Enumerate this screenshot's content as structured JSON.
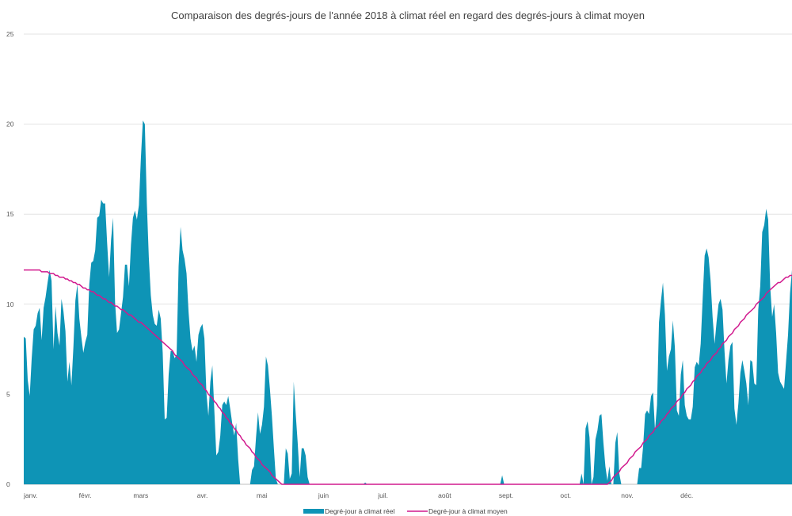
{
  "chart_data": {
    "type": "area",
    "title": "Comparaison des degrés-jours de l'année 2018 à climat réel en regard des degrés-jours à climat moyen",
    "xlabel": "",
    "ylabel": "",
    "ylim": [
      0,
      25
    ],
    "yticks": [
      0,
      5,
      10,
      15,
      20,
      25
    ],
    "grid": true,
    "legend_position": "bottom",
    "x_tick_labels": [
      "janv.",
      "févr.",
      "mars",
      "avr.",
      "mai",
      "juin",
      "juil.",
      "août",
      "sept.",
      "oct.",
      "nov.",
      "déc."
    ],
    "x": {
      "start": "2018-01-01",
      "end": "2018-12-31",
      "step": "1 day"
    },
    "series": [
      {
        "name": "Degré-jour à climat réel",
        "style": "area",
        "color": "#0E94B6",
        "values": [
          8.2,
          8.1,
          5.8,
          4.9,
          7.0,
          8.6,
          8.8,
          9.5,
          9.8,
          8.0,
          9.8,
          10.4,
          11.2,
          11.9,
          11.3,
          7.5,
          9.9,
          8.4,
          7.7,
          10.3,
          9.6,
          8.5,
          5.7,
          6.8,
          5.5,
          7.6,
          10.2,
          11.1,
          9.2,
          8.2,
          7.3,
          7.9,
          8.3,
          11.1,
          12.3,
          12.4,
          13.0,
          14.8,
          14.9,
          15.8,
          15.6,
          15.6,
          13.4,
          11.5,
          13.6,
          14.8,
          10.1,
          8.4,
          8.6,
          9.5,
          10.4,
          12.2,
          12.2,
          11.0,
          13.3,
          14.8,
          15.2,
          14.7,
          15.5,
          18.1,
          20.2,
          20.0,
          15.6,
          12.6,
          10.5,
          9.4,
          8.9,
          8.8,
          9.7,
          9.2,
          7.3,
          3.6,
          3.7,
          6.1,
          7.4,
          7.4,
          7.0,
          7.2,
          12.1,
          14.3,
          13.0,
          12.5,
          11.7,
          9.6,
          8.1,
          7.4,
          7.7,
          6.8,
          8.3,
          8.7,
          8.9,
          8.1,
          5.1,
          3.8,
          5.7,
          6.6,
          4.1,
          1.6,
          1.8,
          2.7,
          4.4,
          4.6,
          4.4,
          4.9,
          4.2,
          3.4,
          2.7,
          3.4,
          1.4,
          0.0,
          0.0,
          0.0,
          0.0,
          0.0,
          0.0,
          0.8,
          1.0,
          2.6,
          4.0,
          2.8,
          3.3,
          4.3,
          7.1,
          6.6,
          5.3,
          3.8,
          2.0,
          0.3,
          0.0,
          0.0,
          0.0,
          0.0,
          2.0,
          1.7,
          0.3,
          0.6,
          5.7,
          3.9,
          2.3,
          0.4,
          2.0,
          2.0,
          1.6,
          0.4,
          0.0,
          0.0,
          0.0,
          0.0,
          0.0,
          0.0,
          0.0,
          0.0,
          0.0,
          0.0,
          0.0,
          0.0,
          0.0,
          0.0,
          0.0,
          0.0,
          0.0,
          0.0,
          0.0,
          0.0,
          0.0,
          0.0,
          0.0,
          0.0,
          0.0,
          0.0,
          0.0,
          0.0,
          0.1,
          0.0,
          0.0,
          0.0,
          0.0,
          0.0,
          0.0,
          0.0,
          0.0,
          0.0,
          0.0,
          0.0,
          0.0,
          0.0,
          0.0,
          0.0,
          0.0,
          0.0,
          0.0,
          0.0,
          0.0,
          0.0,
          0.0,
          0.0,
          0.0,
          0.0,
          0.0,
          0.0,
          0.0,
          0.0,
          0.0,
          0.0,
          0.0,
          0.0,
          0.0,
          0.0,
          0.0,
          0.0,
          0.0,
          0.0,
          0.0,
          0.0,
          0.0,
          0.0,
          0.0,
          0.0,
          0.0,
          0.0,
          0.0,
          0.0,
          0.0,
          0.0,
          0.0,
          0.0,
          0.0,
          0.0,
          0.0,
          0.0,
          0.0,
          0.0,
          0.0,
          0.0,
          0.0,
          0.0,
          0.0,
          0.0,
          0.0,
          0.0,
          0.0,
          0.5,
          0.0,
          0.0,
          0.0,
          0.0,
          0.0,
          0.0,
          0.0,
          0.0,
          0.0,
          0.0,
          0.0,
          0.0,
          0.0,
          0.0,
          0.0,
          0.0,
          0.0,
          0.0,
          0.0,
          0.0,
          0.0,
          0.0,
          0.0,
          0.0,
          0.0,
          0.0,
          0.0,
          0.0,
          0.0,
          0.0,
          0.0,
          0.0,
          0.0,
          0.0,
          0.0,
          0.0,
          0.0,
          0.0,
          0.0,
          0.6,
          0.0,
          3.1,
          3.5,
          2.6,
          0.0,
          0.4,
          2.5,
          3.0,
          3.8,
          3.9,
          2.3,
          1.0,
          0.2,
          1.0,
          0.0,
          0.0,
          2.3,
          2.9,
          0.6,
          0.0,
          0.0,
          0.0,
          0.0,
          0.0,
          0.0,
          0.0,
          0.0,
          0.0,
          0.9,
          0.9,
          2.1,
          3.9,
          4.1,
          3.9,
          4.9,
          5.1,
          3.0,
          4.4,
          9.0,
          10.2,
          11.2,
          9.4,
          6.3,
          7.1,
          7.5,
          9.1,
          7.6,
          4.1,
          3.8,
          6.1,
          6.9,
          4.4,
          3.8,
          3.6,
          3.6,
          4.3,
          6.5,
          6.8,
          6.6,
          7.8,
          10.3,
          12.7,
          13.1,
          12.6,
          11.3,
          9.3,
          7.8,
          9.0,
          10.0,
          10.3,
          9.7,
          7.4,
          5.6,
          6.9,
          7.7,
          7.9,
          4.2,
          3.3,
          4.5,
          6.2,
          6.9,
          6.3,
          5.6,
          4.4,
          6.9,
          6.8,
          5.6,
          5.5,
          9.7,
          11.0,
          14.0,
          14.4,
          15.3,
          14.7,
          11.0,
          9.3,
          10.0,
          8.4,
          6.2,
          5.7,
          5.5,
          5.3,
          6.8,
          8.3,
          10.6,
          11.9
        ]
      },
      {
        "name": "Degré-jour à climat moyen",
        "style": "line",
        "color": "#D11A8E",
        "values": [
          11.9,
          11.9,
          11.9,
          11.9,
          11.9,
          11.9,
          11.9,
          11.9,
          11.9,
          11.8,
          11.8,
          11.8,
          11.8,
          11.7,
          11.7,
          11.7,
          11.6,
          11.6,
          11.5,
          11.5,
          11.5,
          11.4,
          11.4,
          11.3,
          11.3,
          11.2,
          11.2,
          11.1,
          11.1,
          11.0,
          10.9,
          10.9,
          10.8,
          10.8,
          10.7,
          10.7,
          10.6,
          10.5,
          10.5,
          10.4,
          10.3,
          10.3,
          10.2,
          10.1,
          10.1,
          10.0,
          9.9,
          9.9,
          9.8,
          9.7,
          9.7,
          9.6,
          9.5,
          9.4,
          9.4,
          9.3,
          9.2,
          9.1,
          9.0,
          9.0,
          8.9,
          8.8,
          8.7,
          8.6,
          8.5,
          8.4,
          8.3,
          8.2,
          8.1,
          8.0,
          7.9,
          7.8,
          7.7,
          7.6,
          7.5,
          7.4,
          7.2,
          7.1,
          7.0,
          6.9,
          6.8,
          6.6,
          6.5,
          6.4,
          6.3,
          6.1,
          6.0,
          5.9,
          5.7,
          5.6,
          5.5,
          5.3,
          5.2,
          5.0,
          4.9,
          4.8,
          4.6,
          4.5,
          4.3,
          4.2,
          4.0,
          3.9,
          3.7,
          3.6,
          3.4,
          3.3,
          3.1,
          3.0,
          2.8,
          2.7,
          2.5,
          2.4,
          2.2,
          2.1,
          2.0,
          1.8,
          1.7,
          1.5,
          1.4,
          1.3,
          1.1,
          1.0,
          0.9,
          0.8,
          0.7,
          0.5,
          0.4,
          0.3,
          0.2,
          0.1,
          0.0,
          0.0,
          0.0,
          0.0,
          0.0,
          0.0,
          0.0,
          0.0,
          0.0,
          0.0,
          0.0,
          0.0,
          0.0,
          0.0,
          0.0,
          0.0,
          0.0,
          0.0,
          0.0,
          0.0,
          0.0,
          0.0,
          0.0,
          0.0,
          0.0,
          0.0,
          0.0,
          0.0,
          0.0,
          0.0,
          0.0,
          0.0,
          0.0,
          0.0,
          0.0,
          0.0,
          0.0,
          0.0,
          0.0,
          0.0,
          0.0,
          0.0,
          0.0,
          0.0,
          0.0,
          0.0,
          0.0,
          0.0,
          0.0,
          0.0,
          0.0,
          0.0,
          0.0,
          0.0,
          0.0,
          0.0,
          0.0,
          0.0,
          0.0,
          0.0,
          0.0,
          0.0,
          0.0,
          0.0,
          0.0,
          0.0,
          0.0,
          0.0,
          0.0,
          0.0,
          0.0,
          0.0,
          0.0,
          0.0,
          0.0,
          0.0,
          0.0,
          0.0,
          0.0,
          0.0,
          0.0,
          0.0,
          0.0,
          0.0,
          0.0,
          0.0,
          0.0,
          0.0,
          0.0,
          0.0,
          0.0,
          0.0,
          0.0,
          0.0,
          0.0,
          0.0,
          0.0,
          0.0,
          0.0,
          0.0,
          0.0,
          0.0,
          0.0,
          0.0,
          0.0,
          0.0,
          0.0,
          0.0,
          0.0,
          0.0,
          0.0,
          0.0,
          0.0,
          0.0,
          0.0,
          0.0,
          0.0,
          0.0,
          0.0,
          0.0,
          0.0,
          0.0,
          0.0,
          0.0,
          0.0,
          0.0,
          0.0,
          0.0,
          0.0,
          0.0,
          0.0,
          0.0,
          0.0,
          0.0,
          0.0,
          0.0,
          0.0,
          0.0,
          0.0,
          0.0,
          0.0,
          0.0,
          0.0,
          0.0,
          0.0,
          0.0,
          0.0,
          0.0,
          0.0,
          0.0,
          0.0,
          0.0,
          0.0,
          0.0,
          0.0,
          0.0,
          0.0,
          0.0,
          0.0,
          0.0,
          0.0,
          0.0,
          0.0,
          0.0,
          0.0,
          0.1,
          0.2,
          0.4,
          0.5,
          0.6,
          0.7,
          0.9,
          1.0,
          1.1,
          1.2,
          1.4,
          1.5,
          1.6,
          1.8,
          1.9,
          2.0,
          2.1,
          2.3,
          2.4,
          2.5,
          2.7,
          2.8,
          2.9,
          3.1,
          3.2,
          3.3,
          3.5,
          3.6,
          3.7,
          3.9,
          4.0,
          4.2,
          4.3,
          4.4,
          4.6,
          4.7,
          4.8,
          5.0,
          5.1,
          5.3,
          5.4,
          5.5,
          5.7,
          5.8,
          6.0,
          6.1,
          6.2,
          6.4,
          6.5,
          6.7,
          6.8,
          6.9,
          7.1,
          7.2,
          7.3,
          7.5,
          7.6,
          7.8,
          7.9,
          8.0,
          8.2,
          8.3,
          8.4,
          8.6,
          8.7,
          8.8,
          9.0,
          9.1,
          9.2,
          9.4,
          9.5,
          9.6,
          9.7,
          9.8,
          10.0,
          10.1,
          10.2,
          10.3,
          10.4,
          10.6,
          10.7,
          10.8,
          10.9,
          11.0,
          11.1,
          11.2,
          11.2,
          11.3,
          11.4,
          11.5,
          11.5,
          11.6,
          11.6,
          11.7,
          11.7,
          11.8,
          11.8,
          11.8,
          11.8,
          11.9,
          11.9
        ]
      }
    ]
  }
}
